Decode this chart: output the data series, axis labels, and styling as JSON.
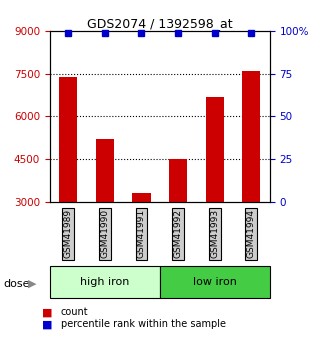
{
  "title": "GDS2074 / 1392598_at",
  "samples": [
    "GSM41989",
    "GSM41990",
    "GSM41991",
    "GSM41992",
    "GSM41993",
    "GSM41994"
  ],
  "bar_values": [
    7400,
    5200,
    3300,
    4500,
    6700,
    7600
  ],
  "percentile_values": [
    99,
    99,
    99,
    99,
    99,
    99
  ],
  "bar_color": "#cc0000",
  "percentile_color": "#0000cc",
  "ylim_left": [
    3000,
    9000
  ],
  "ylim_right": [
    0,
    100
  ],
  "yticks_left": [
    3000,
    4500,
    6000,
    7500,
    9000
  ],
  "yticks_right": [
    0,
    25,
    50,
    75,
    100
  ],
  "yticklabels_right": [
    "0",
    "25",
    "50",
    "75",
    "100%"
  ],
  "groups": [
    {
      "label": "high iron",
      "color": "#ccffcc"
    },
    {
      "label": "low iron",
      "color": "#44cc44"
    }
  ],
  "dose_label": "dose",
  "legend_count": "count",
  "legend_percentile": "percentile rank within the sample",
  "tick_label_color_left": "#cc0000",
  "tick_label_color_right": "#0000cc",
  "bar_bottom": 3000,
  "sample_box_color": "#cccccc",
  "figsize": [
    3.21,
    3.45
  ],
  "dpi": 100
}
